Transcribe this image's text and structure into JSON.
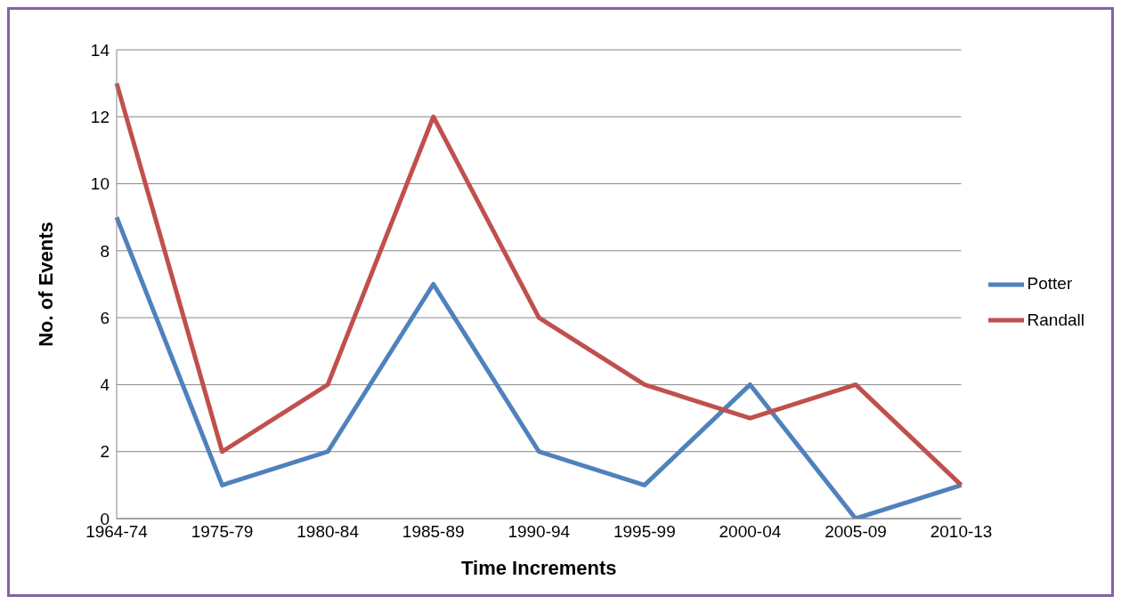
{
  "chart_data": {
    "type": "line",
    "xlabel": "Time Increments",
    "ylabel": "No. of Events",
    "categories": [
      "1964-74",
      "1975-79",
      "1980-84",
      "1985-89",
      "1990-94",
      "1995-99",
      "2000-04",
      "2005-09",
      "2010-13"
    ],
    "series": [
      {
        "name": "Potter",
        "color": "#4f81bd",
        "values": [
          9,
          1,
          2,
          7,
          2,
          1,
          4,
          0,
          1
        ]
      },
      {
        "name": "Randall",
        "color": "#c0504d",
        "values": [
          13,
          2,
          4,
          12,
          6,
          4,
          3,
          4,
          1
        ]
      }
    ],
    "ylim": [
      0,
      14
    ],
    "yticks": [
      0,
      2,
      4,
      6,
      8,
      10,
      12,
      14
    ],
    "grid": "y",
    "legend": "right",
    "marker": "none",
    "line_style": "solid"
  }
}
